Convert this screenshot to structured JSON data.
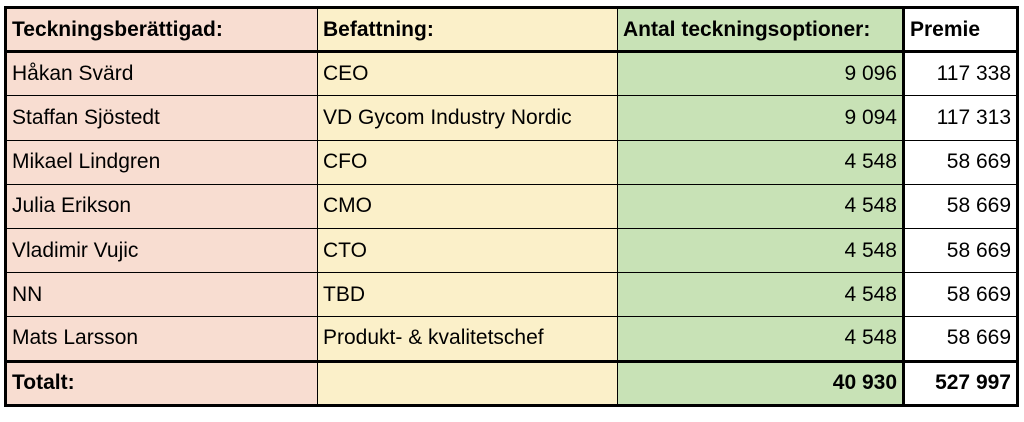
{
  "headers": {
    "name": "Teckningsberättigad:",
    "position": "Befattning:",
    "options": "Antal teckningsoptioner:",
    "premium": "Premie"
  },
  "rows": [
    {
      "name": "Håkan Svärd",
      "position": "CEO",
      "options": "9 096",
      "premium": "117 338"
    },
    {
      "name": "Staffan Sjöstedt",
      "position": "VD Gycom Industry Nordic",
      "options": "9 094",
      "premium": "117 313"
    },
    {
      "name": "Mikael Lindgren",
      "position": "CFO",
      "options": "4 548",
      "premium": "58 669"
    },
    {
      "name": "Julia Erikson",
      "position": "CMO",
      "options": "4 548",
      "premium": "58 669"
    },
    {
      "name": "Vladimir Vujic",
      "position": "CTO",
      "options": "4 548",
      "premium": "58 669"
    },
    {
      "name": "NN",
      "position": "TBD",
      "options": "4 548",
      "premium": "58 669"
    },
    {
      "name": "Mats Larsson",
      "position": "Produkt- & kvalitetschef",
      "options": "4 548",
      "premium": "58 669"
    }
  ],
  "total": {
    "label": "Totalt:",
    "position": "",
    "options": "40 930",
    "premium": "527 997"
  },
  "colors": {
    "name_column": "#f8ddd1",
    "position_column": "#fbf0c9",
    "options_column": "#c8e2b6",
    "premium_column": "#ffffff"
  }
}
